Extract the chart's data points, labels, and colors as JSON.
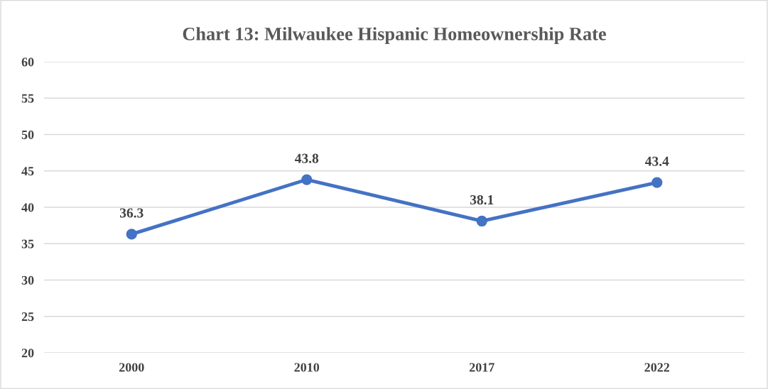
{
  "chart_data": {
    "type": "line",
    "title": "Chart 13: Milwaukee Hispanic Homeownership Rate",
    "categories": [
      "2000",
      "2010",
      "2017",
      "2022"
    ],
    "series": [
      {
        "color": "#4472c4",
        "values": [
          36.3,
          43.8,
          38.1,
          43.4
        ]
      }
    ],
    "ylim": [
      20,
      60
    ],
    "yticks": [
      20,
      25,
      30,
      35,
      40,
      45,
      50,
      55,
      60
    ],
    "grid": "y",
    "marker": "circle",
    "line_style": "solid",
    "data_labels": true,
    "legend": false
  }
}
